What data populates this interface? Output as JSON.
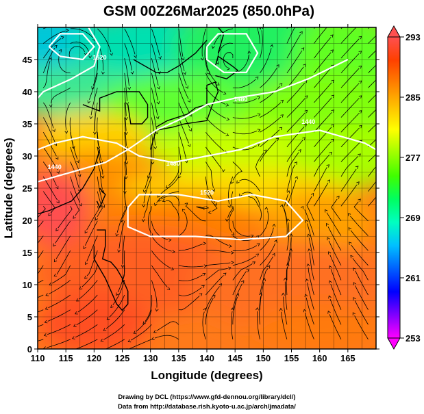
{
  "chart_data": {
    "type": "heatmap",
    "title": "GSM 00Z26Mar2025 (850.0hPa)",
    "xlabel": "Longitude (degrees)",
    "ylabel": "Latitude  (degrees)",
    "xlim": [
      110,
      170
    ],
    "ylim": [
      0,
      50
    ],
    "xticks": [
      110,
      115,
      120,
      125,
      130,
      135,
      140,
      145,
      150,
      155,
      160,
      165
    ],
    "yticks": [
      0,
      5,
      10,
      15,
      20,
      25,
      30,
      35,
      40,
      45
    ],
    "colorbar": {
      "range": [
        253,
        293
      ],
      "tick_values": [
        293,
        285,
        277,
        269,
        261,
        253
      ],
      "tick_labels": [
        "293",
        "285",
        "277",
        "269",
        "261",
        "253"
      ],
      "colors": [
        "#ff00ff",
        "#8000ff",
        "#0000ff",
        "#0060ff",
        "#00c0ff",
        "#00ffc0",
        "#00ff60",
        "#40ff00",
        "#a0ff00",
        "#ffff00",
        "#ffc000",
        "#ff8000",
        "#ff4000",
        "#ff5050"
      ]
    },
    "contours": {
      "labels": [
        "1520",
        "1440",
        "1480",
        "1480",
        "1440",
        "1520"
      ]
    },
    "credits": [
      "Drawing by DCL (https://www.gfd-dennou.org/library/dcl/)",
      "Data from http://database.rish.kyoto-u.ac.jp/arch/jmadata/"
    ]
  }
}
